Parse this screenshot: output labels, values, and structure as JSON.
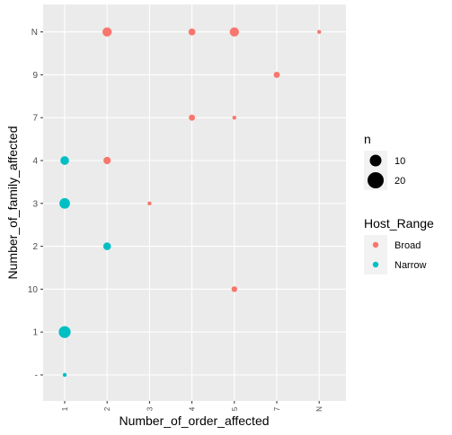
{
  "chart_data": {
    "type": "scatter",
    "title": "",
    "xlabel": "Number_of_order_affected",
    "ylabel": "Number_of_family_affected",
    "x_categories": [
      "1",
      "2",
      "3",
      "4",
      "5",
      "7",
      "N"
    ],
    "y_categories": [
      "-",
      "1",
      "10",
      "2",
      "3",
      "4",
      "7",
      "9",
      "N"
    ],
    "grid": true,
    "colors": {
      "Broad": "#F8766D",
      "Narrow": "#00BFC4"
    },
    "size_legend": {
      "title": "n",
      "values": [
        10,
        20
      ]
    },
    "color_legend": {
      "title": "Host_Range",
      "entries": [
        "Broad",
        "Narrow"
      ]
    },
    "points": [
      {
        "x": "2",
        "y": "N",
        "n": 15,
        "group": "Broad"
      },
      {
        "x": "4",
        "y": "N",
        "n": 8,
        "group": "Broad"
      },
      {
        "x": "5",
        "y": "N",
        "n": 15,
        "group": "Broad"
      },
      {
        "x": "N",
        "y": "N",
        "n": 2,
        "group": "Broad"
      },
      {
        "x": "7",
        "y": "9",
        "n": 6,
        "group": "Broad"
      },
      {
        "x": "4",
        "y": "7",
        "n": 6,
        "group": "Broad"
      },
      {
        "x": "5",
        "y": "7",
        "n": 2,
        "group": "Broad"
      },
      {
        "x": "2",
        "y": "4",
        "n": 9,
        "group": "Broad"
      },
      {
        "x": "3",
        "y": "3",
        "n": 2,
        "group": "Broad"
      },
      {
        "x": "5",
        "y": "10",
        "n": 5,
        "group": "Broad"
      },
      {
        "x": "1",
        "y": "4",
        "n": 13,
        "group": "Narrow"
      },
      {
        "x": "1",
        "y": "3",
        "n": 20,
        "group": "Narrow"
      },
      {
        "x": "2",
        "y": "2",
        "n": 10,
        "group": "Narrow"
      },
      {
        "x": "1",
        "y": "1",
        "n": 26,
        "group": "Narrow"
      },
      {
        "x": "1",
        "y": "-",
        "n": 2,
        "group": "Narrow"
      }
    ]
  }
}
